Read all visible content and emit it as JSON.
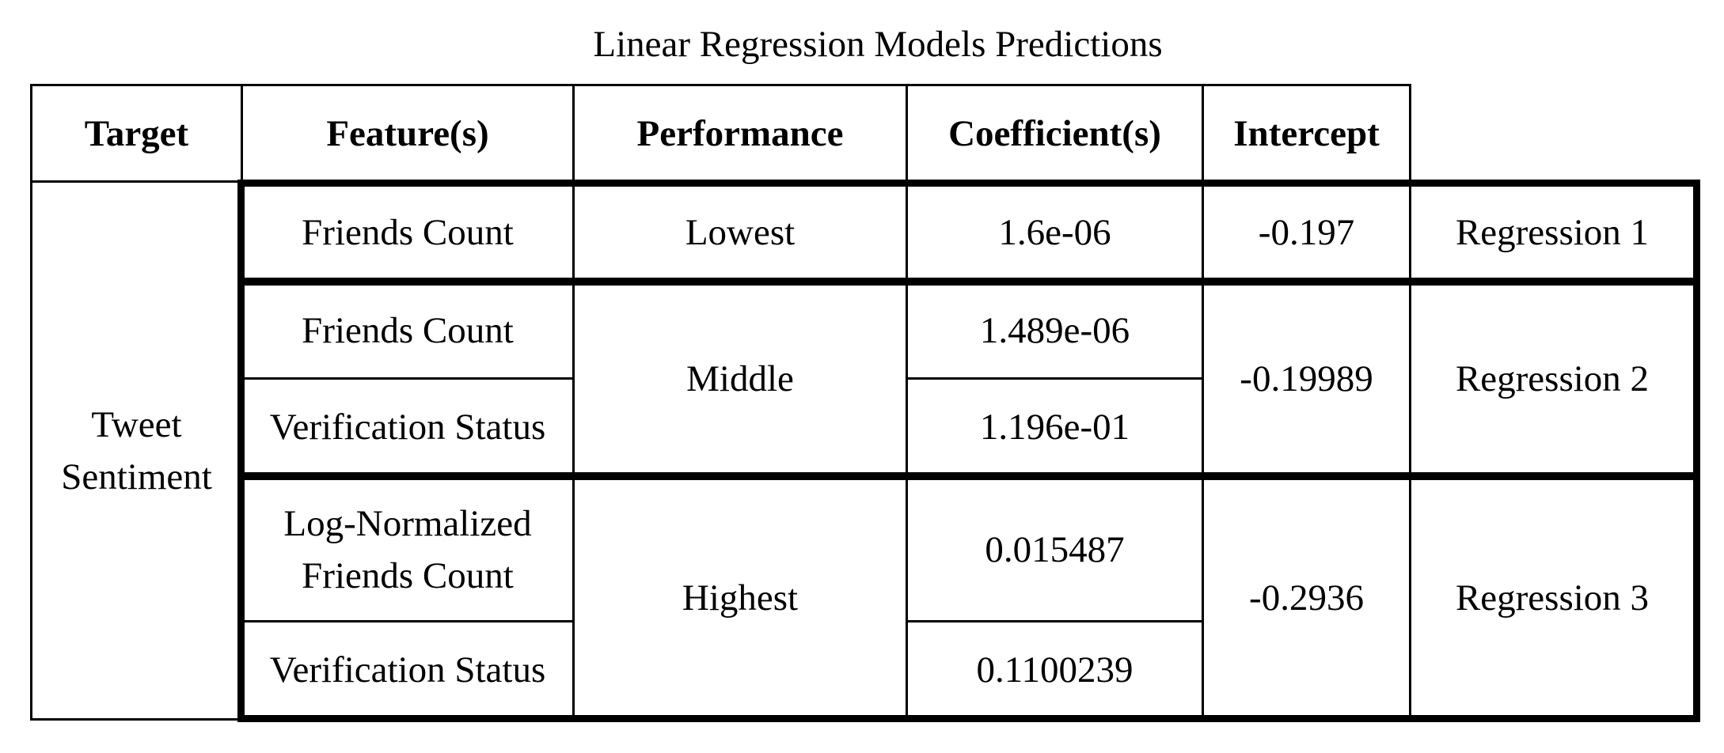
{
  "title": "Linear Regression Models Predictions",
  "headers": {
    "target": "Target",
    "features": "Feature(s)",
    "performance": "Performance",
    "coefficients": "Coefficient(s)",
    "intercept": "Intercept"
  },
  "target_value": "Tweet\nSentiment",
  "regressions": [
    {
      "label": "Regression 1",
      "performance": "Lowest",
      "intercept": "-0.197",
      "rows": [
        {
          "feature": "Friends Count",
          "coefficient": "1.6e-06"
        }
      ]
    },
    {
      "label": "Regression 2",
      "performance": "Middle",
      "intercept": "-0.19989",
      "rows": [
        {
          "feature": "Friends Count",
          "coefficient": "1.489e-06"
        },
        {
          "feature": "Verification Status",
          "coefficient": "1.196e-01"
        }
      ]
    },
    {
      "label": "Regression 3",
      "performance": "Highest",
      "intercept": "-0.2936",
      "rows": [
        {
          "feature": "Log-Normalized\nFriends Count",
          "coefficient": "0.015487"
        },
        {
          "feature": "Verification Status",
          "coefficient": "0.1100239"
        }
      ]
    }
  ]
}
